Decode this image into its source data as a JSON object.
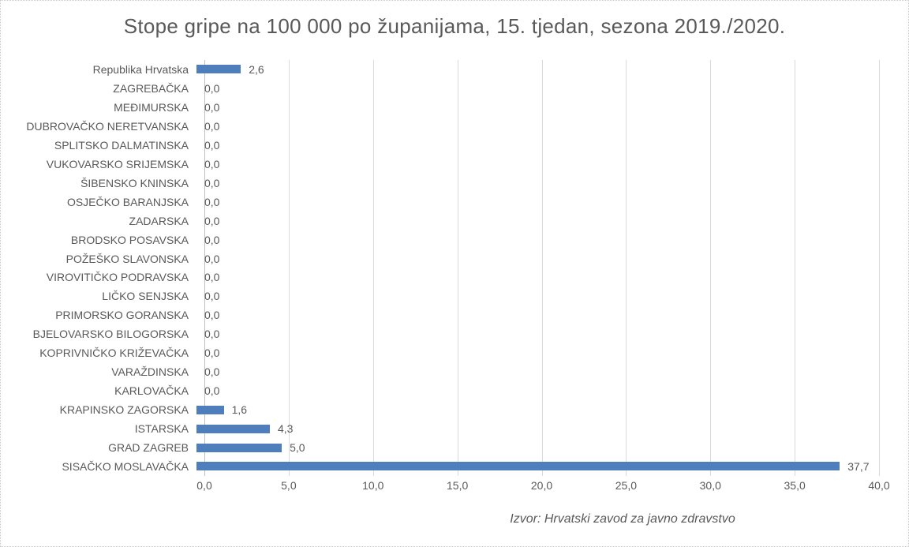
{
  "colors": {
    "bar": "#4e7fbc",
    "text": "#595959",
    "gridline": "#d9d9d9",
    "axis_line": "#bfbfbf"
  },
  "chart_data": {
    "type": "bar",
    "orientation": "horizontal",
    "title": "Stope gripe na 100 000 po županijama, 15. tjedan, sezona 2019./2020.",
    "categories": [
      "Republika Hrvatska",
      "ZAGREBAČKA",
      "MEĐIMURSKA",
      "DUBROVAČKO NERETVANSKA",
      "SPLITSKO DALMATINSKA",
      "VUKOVARSKO SRIJEMSKA",
      "ŠIBENSKO KNINSKA",
      "OSJEČKO BARANJSKA",
      "ZADARSKA",
      "BRODSKO POSAVSKA",
      "POŽEŠKO SLAVONSKA",
      "VIROVITIČKO PODRAVSKA",
      "LIČKO SENJSKA",
      "PRIMORSKO GORANSKA",
      "BJELOVARSKO BILOGORSKA",
      "KOPRIVNIČKO KRIŽEVAČKA",
      "VARAŽDINSKA",
      "KARLOVAČKA",
      "KRAPINSKO ZAGORSKA",
      "ISTARSKA",
      "GRAD ZAGREB",
      "SISAČKO MOSLAVAČKA"
    ],
    "values": [
      2.6,
      0,
      0,
      0,
      0,
      0,
      0,
      0,
      0,
      0,
      0,
      0,
      0,
      0,
      0,
      0,
      0,
      0,
      1.6,
      4.3,
      5.0,
      37.7
    ],
    "value_labels": [
      "2,6",
      "0,0",
      "0,0",
      "0,0",
      "0,0",
      "0,0",
      "0,0",
      "0,0",
      "0,0",
      "0,0",
      "0,0",
      "0,0",
      "0,0",
      "0,0",
      "0,0",
      "0,0",
      "0,0",
      "0,0",
      "1,6",
      "4,3",
      "5,0",
      "37,7"
    ],
    "x_ticks": [
      "0,0",
      "5,0",
      "10,0",
      "15,0",
      "20,0",
      "25,0",
      "30,0",
      "35,0",
      "40,0"
    ],
    "xlim": [
      0,
      40
    ],
    "x_tick_step": 5,
    "grid": "vertical major gridlines on",
    "legend": "none",
    "xlabel": "",
    "ylabel": "",
    "source_note": "Izvor: Hrvatski zavod za javno zdravstvo"
  }
}
